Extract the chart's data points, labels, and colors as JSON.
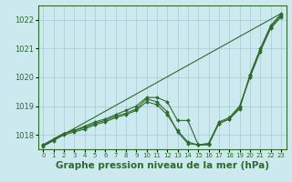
{
  "background_color": "#cde9f0",
  "grid_color": "#a8c8d4",
  "line_color": "#2d6b2d",
  "marker_color": "#2d6b2d",
  "xlabel": "Graphe pression niveau de la mer (hPa)",
  "xlabel_fontsize": 7.5,
  "ylim": [
    1017.5,
    1022.5
  ],
  "xlim": [
    -0.5,
    23.5
  ],
  "yticks": [
    1018,
    1019,
    1020,
    1021,
    1022
  ],
  "xticks": [
    0,
    1,
    2,
    3,
    4,
    5,
    6,
    7,
    8,
    9,
    10,
    11,
    12,
    13,
    14,
    15,
    16,
    17,
    18,
    19,
    20,
    21,
    22,
    23
  ],
  "series_with_markers": [
    [
      1017.65,
      1017.85,
      1018.05,
      1018.15,
      1018.3,
      1018.45,
      1018.55,
      1018.7,
      1018.85,
      1019.0,
      1019.3,
      1019.3,
      1019.15,
      1018.5,
      1018.5,
      1017.65,
      1017.7,
      1018.4,
      1018.55,
      1018.9,
      1020.1,
      1021.0,
      1021.8,
      1022.2
    ],
    [
      1017.65,
      1017.85,
      1018.05,
      1018.15,
      1018.25,
      1018.4,
      1018.5,
      1018.65,
      1018.75,
      1018.9,
      1019.25,
      1019.15,
      1018.8,
      1018.1,
      1017.7,
      1017.65,
      1017.65,
      1018.4,
      1018.55,
      1018.95,
      1020.05,
      1020.95,
      1021.75,
      1022.15
    ],
    [
      1017.6,
      1017.8,
      1018.0,
      1018.1,
      1018.2,
      1018.35,
      1018.45,
      1018.6,
      1018.7,
      1018.85,
      1019.15,
      1019.05,
      1018.7,
      1018.15,
      1017.75,
      1017.65,
      1017.7,
      1018.45,
      1018.6,
      1019.0,
      1020.0,
      1020.9,
      1021.7,
      1022.1
    ]
  ],
  "series_no_markers": [
    [
      [
        0,
        1017.62
      ],
      [
        23,
        1022.22
      ]
    ]
  ]
}
